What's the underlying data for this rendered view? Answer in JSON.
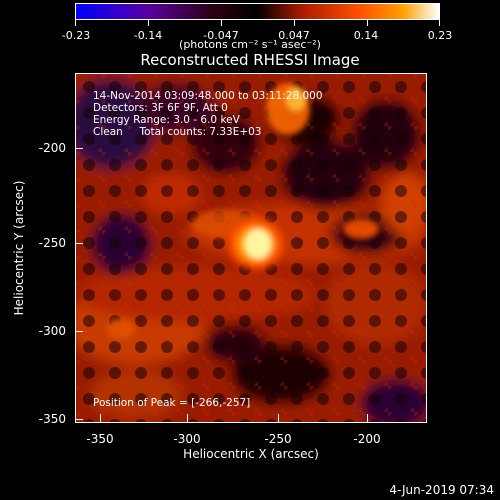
{
  "colorbar": {
    "ticks": [
      "-0.23",
      "-0.14",
      "-0.047",
      "0.047",
      "0.14",
      "0.23"
    ],
    "units": "(photons cm⁻² s⁻¹ asec⁻²)"
  },
  "title": "Reconstructed RHESSI Image",
  "annotation": {
    "time": "14-Nov-2014 03:09:48.000 to 03:11:28.000",
    "detectors": "Detectors: 3F 6F 9F, Att 0",
    "energy": "Energy Range: 3.0 - 6.0 keV",
    "method": "Clean     Total counts: 7.33E+03"
  },
  "peak": "Position of Peak = [-266,-257]",
  "x_axis": {
    "label": "Heliocentric X (arcsec)",
    "ticks": [
      "-350",
      "-300",
      "-250",
      "-200"
    ]
  },
  "y_axis": {
    "label": "Heliocentric Y (arcsec)",
    "ticks": [
      "-200",
      "-250",
      "-300",
      "-350"
    ]
  },
  "footer_date": "4-Jun-2019 07:34",
  "image": {
    "xlim": [
      -365,
      -173
    ],
    "ylim": [
      -351,
      -159
    ],
    "peak_position": [
      -266,
      -257
    ],
    "secondary_source": [
      -287,
      -165
    ],
    "value_range": [
      -0.23,
      0.23
    ],
    "colormap": [
      "#0000ff",
      "#5a00a0",
      "#2a0010",
      "#000000",
      "#aa1a00",
      "#ff5000",
      "#ffa000",
      "#ffffff"
    ]
  }
}
